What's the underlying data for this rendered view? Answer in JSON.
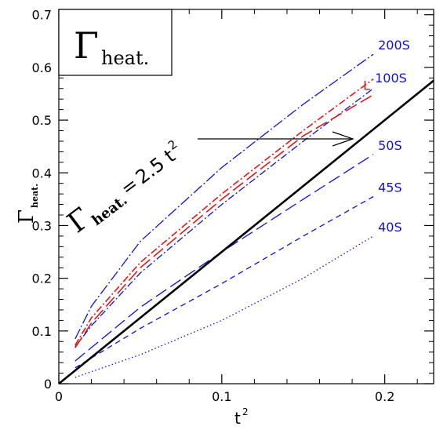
{
  "colors": {
    "axis": "#000000",
    "blue": "#1010d8",
    "red": "#e01818",
    "fit": "#000000"
  },
  "chart_data": {
    "type": "line",
    "title": "",
    "xlabel": "t",
    "xlabel_sup": "2",
    "ylabel": "Γ",
    "ylabel_sub": "heat.",
    "xlim": [
      0,
      0.23
    ],
    "ylim": [
      0,
      0.71
    ],
    "x_ticks": [
      0,
      0.1,
      0.2
    ],
    "x_tick_labels": [
      "0",
      "0.1",
      "0.2"
    ],
    "y_ticks": [
      0,
      0.1,
      0.2,
      0.3,
      0.4,
      0.5,
      0.6,
      0.7
    ],
    "y_tick_labels": [
      "0",
      "0.1",
      "0.2",
      "0.3",
      "0.4",
      "0.5",
      "0.6",
      "0.7"
    ],
    "grid": false,
    "legend_box": {
      "symbol": "Γ",
      "subscript": "heat."
    },
    "fit_annotation": {
      "symbol": "Γ",
      "subscript": "heat.",
      "equals": "=",
      "text": "2.5 t",
      "superscript": "2"
    },
    "fit_line": {
      "slope": 2.5,
      "x": [
        0,
        0.23
      ],
      "y": [
        0,
        0.575
      ]
    },
    "series": [
      {
        "name": "200S",
        "color": "blue",
        "dash": "longdot",
        "x": [
          0.01,
          0.02,
          0.05,
          0.1,
          0.15,
          0.193
        ],
        "y": [
          0.085,
          0.147,
          0.27,
          0.41,
          0.53,
          0.625
        ]
      },
      {
        "name": "100S",
        "color": "blue",
        "dash": "dashdot",
        "x": [
          0.01,
          0.02,
          0.05,
          0.1,
          0.15,
          0.193
        ],
        "y": [
          0.07,
          0.11,
          0.21,
          0.34,
          0.46,
          0.56
        ]
      },
      {
        "name": "L",
        "color": "red",
        "dash": "dashdot",
        "x": [
          0.01,
          0.02,
          0.05,
          0.1,
          0.15,
          0.193
        ],
        "y": [
          0.073,
          0.125,
          0.23,
          0.36,
          0.48,
          0.578
        ]
      },
      {
        "name": "",
        "color": "red",
        "dash": "longdash",
        "x": [
          0.01,
          0.02,
          0.05,
          0.1,
          0.15,
          0.193
        ],
        "y": [
          0.068,
          0.115,
          0.22,
          0.35,
          0.47,
          0.548
        ]
      },
      {
        "name": "50S",
        "color": "blue",
        "dash": "longdash",
        "x": [
          0.01,
          0.05,
          0.1,
          0.15,
          0.193
        ],
        "y": [
          0.043,
          0.145,
          0.25,
          0.35,
          0.435
        ]
      },
      {
        "name": "45S",
        "color": "blue",
        "dash": "dash",
        "x": [
          0.01,
          0.05,
          0.1,
          0.15,
          0.193
        ],
        "y": [
          0.03,
          0.105,
          0.19,
          0.28,
          0.355
        ]
      },
      {
        "name": "40S",
        "color": "blue",
        "dash": "dot",
        "x": [
          0.01,
          0.05,
          0.1,
          0.15,
          0.193
        ],
        "y": [
          0.012,
          0.055,
          0.12,
          0.2,
          0.28
        ]
      }
    ]
  }
}
